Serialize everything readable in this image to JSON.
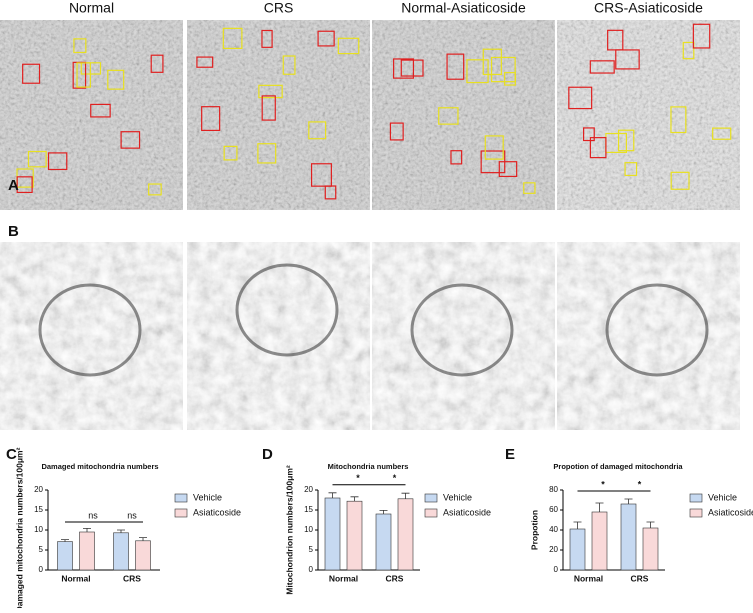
{
  "panel_labels": [
    "A",
    "B",
    "C",
    "D",
    "E"
  ],
  "image_titles": [
    "Normal",
    "CRS",
    "Normal-Asiaticoside",
    "CRS-Asiaticoside"
  ],
  "chart_data": [
    {
      "type": "bar",
      "title": "Damaged mitochondria numbers",
      "ylabel": "Damaged mitochondria numbers/100μm²",
      "categories": [
        "Normal",
        "CRS"
      ],
      "series": [
        {
          "name": "Vehicle",
          "color": "#c6d9f1",
          "values": [
            7.1,
            9.3
          ],
          "errors": [
            0.5,
            0.7
          ]
        },
        {
          "name": "Asiaticoside",
          "color": "#f9d9d9",
          "values": [
            9.5,
            7.3
          ],
          "errors": [
            0.9,
            0.8
          ]
        }
      ],
      "ylim": [
        0,
        20
      ],
      "yticks": [
        0,
        5,
        10,
        15,
        20
      ],
      "annotations": [
        "ns",
        "ns"
      ]
    },
    {
      "type": "bar",
      "title": "Mitochondria numbers",
      "ylabel": "Mitochondrion numbers/100μm²",
      "categories": [
        "Normal",
        "CRS"
      ],
      "series": [
        {
          "name": "Vehicle",
          "color": "#c6d9f1",
          "values": [
            18.0,
            14.0
          ],
          "errors": [
            1.3,
            0.9
          ]
        },
        {
          "name": "Asiaticoside",
          "color": "#f9d9d9",
          "values": [
            17.2,
            17.8
          ],
          "errors": [
            1.1,
            1.4
          ]
        }
      ],
      "ylim": [
        0,
        20
      ],
      "yticks": [
        0,
        5,
        10,
        15,
        20
      ],
      "annotations": [
        "*",
        "*"
      ]
    },
    {
      "type": "bar",
      "title": "Propotion of damaged mitochondria",
      "ylabel": "Propotion",
      "categories": [
        "Normal",
        "CRS"
      ],
      "series": [
        {
          "name": "Vehicle",
          "color": "#c6d9f1",
          "values": [
            41,
            66
          ],
          "errors": [
            7,
            5
          ]
        },
        {
          "name": "Asiaticoside",
          "color": "#f9d9d9",
          "values": [
            58,
            42
          ],
          "errors": [
            9,
            6
          ]
        }
      ],
      "ylim": [
        0,
        80
      ],
      "yticks": [
        0,
        20,
        40,
        60,
        80
      ],
      "annotations": [
        "*",
        "*"
      ]
    }
  ]
}
